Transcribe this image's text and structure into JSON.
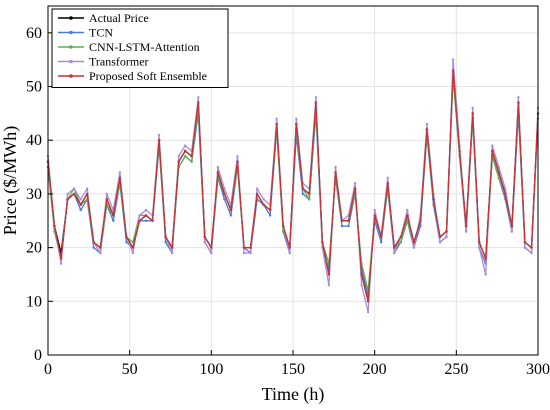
{
  "chart_data": {
    "type": "line",
    "xlabel": "Time (h)",
    "ylabel": "Price ($/MWh)",
    "xlim": [
      0,
      300
    ],
    "ylim": [
      0,
      65
    ],
    "xticks": [
      "0",
      "50",
      "100",
      "150",
      "200",
      "250",
      "300"
    ],
    "yticks": [
      "0",
      "10",
      "20",
      "30",
      "40",
      "50",
      "60"
    ],
    "grid": true,
    "legend_position": "top-left",
    "x": [
      0,
      4,
      8,
      12,
      16,
      20,
      24,
      28,
      32,
      36,
      40,
      44,
      48,
      52,
      56,
      60,
      64,
      68,
      72,
      76,
      80,
      84,
      88,
      92,
      96,
      100,
      104,
      108,
      112,
      116,
      120,
      124,
      128,
      132,
      136,
      140,
      144,
      148,
      152,
      156,
      160,
      164,
      168,
      172,
      176,
      180,
      184,
      188,
      192,
      196,
      200,
      204,
      208,
      212,
      216,
      220,
      224,
      228,
      232,
      236,
      240,
      244,
      248,
      252,
      256,
      260,
      264,
      268,
      272,
      276,
      280,
      284,
      288,
      292,
      296,
      300
    ],
    "series": [
      {
        "name": "Actual Price",
        "color": "#000000",
        "values": [
          36,
          24,
          19,
          29,
          30,
          28,
          30,
          21,
          20,
          29,
          26,
          33,
          22,
          20,
          25,
          26,
          25,
          40,
          22,
          20,
          36,
          38,
          37,
          47,
          22,
          20,
          34,
          30,
          27,
          36,
          20,
          20,
          30,
          28,
          27,
          43,
          24,
          20,
          43,
          31,
          30,
          47,
          21,
          15,
          34,
          25,
          25,
          31,
          15,
          10,
          26,
          22,
          32,
          20,
          22,
          26,
          21,
          25,
          42,
          29,
          22,
          23,
          53,
          38,
          24,
          45,
          21,
          18,
          38,
          34,
          30,
          24,
          47,
          21,
          20,
          45
        ]
      },
      {
        "name": "TCN",
        "color": "#4a7bd0",
        "values": [
          35,
          23,
          18,
          29,
          30,
          27,
          29,
          20,
          19,
          28,
          25,
          32,
          21,
          20,
          25,
          25,
          25,
          39,
          21,
          19,
          35,
          37,
          36,
          45,
          21,
          19,
          33,
          29,
          26,
          35,
          20,
          19,
          29,
          28,
          26,
          42,
          23,
          19,
          41,
          30,
          29,
          45,
          20,
          16,
          33,
          24,
          24,
          30,
          16,
          11,
          25,
          21,
          31,
          19,
          21,
          25,
          20,
          24,
          41,
          28,
          21,
          22,
          52,
          37,
          23,
          44,
          20,
          17,
          37,
          33,
          29,
          23,
          45,
          20,
          19,
          44
        ]
      },
      {
        "name": "CNN-LSTM-Attention",
        "color": "#5fae4f",
        "values": [
          35,
          23,
          18,
          29,
          31,
          28,
          29,
          21,
          20,
          28,
          26,
          32,
          22,
          21,
          26,
          26,
          25,
          39,
          22,
          20,
          35,
          37,
          36,
          46,
          22,
          20,
          33,
          30,
          27,
          35,
          20,
          20,
          30,
          28,
          27,
          42,
          23,
          20,
          42,
          31,
          29,
          46,
          21,
          17,
          33,
          25,
          25,
          30,
          17,
          12,
          26,
          22,
          31,
          20,
          21,
          25,
          21,
          25,
          41,
          29,
          22,
          23,
          52,
          37,
          24,
          44,
          21,
          18,
          37,
          33,
          30,
          24,
          46,
          21,
          20,
          45
        ]
      },
      {
        "name": "Transformer",
        "color": "#a98ad8",
        "values": [
          37,
          24,
          17,
          30,
          31,
          29,
          31,
          21,
          19,
          30,
          27,
          34,
          22,
          19,
          26,
          27,
          26,
          41,
          22,
          19,
          37,
          39,
          38,
          48,
          21,
          19,
          35,
          31,
          28,
          37,
          19,
          19,
          31,
          29,
          28,
          44,
          24,
          19,
          44,
          32,
          31,
          48,
          20,
          13,
          35,
          25,
          26,
          32,
          13,
          8,
          27,
          22,
          33,
          19,
          22,
          27,
          20,
          26,
          43,
          30,
          21,
          22,
          55,
          39,
          23,
          46,
          20,
          15,
          39,
          35,
          31,
          23,
          48,
          20,
          19,
          46
        ]
      },
      {
        "name": "Proposed Soft Ensemble",
        "color": "#c83232",
        "values": [
          36,
          24,
          18,
          29,
          30,
          28,
          30,
          21,
          20,
          29,
          26,
          33,
          22,
          20,
          25,
          26,
          25,
          40,
          22,
          20,
          36,
          38,
          37,
          47,
          22,
          20,
          34,
          30,
          27,
          36,
          20,
          20,
          30,
          28,
          27,
          43,
          24,
          20,
          43,
          31,
          30,
          47,
          21,
          15,
          34,
          25,
          25,
          31,
          15,
          10,
          26,
          22,
          32,
          20,
          22,
          26,
          21,
          25,
          42,
          29,
          22,
          23,
          53,
          38,
          24,
          45,
          21,
          18,
          38,
          34,
          30,
          24,
          47,
          21,
          20,
          45
        ]
      }
    ]
  }
}
